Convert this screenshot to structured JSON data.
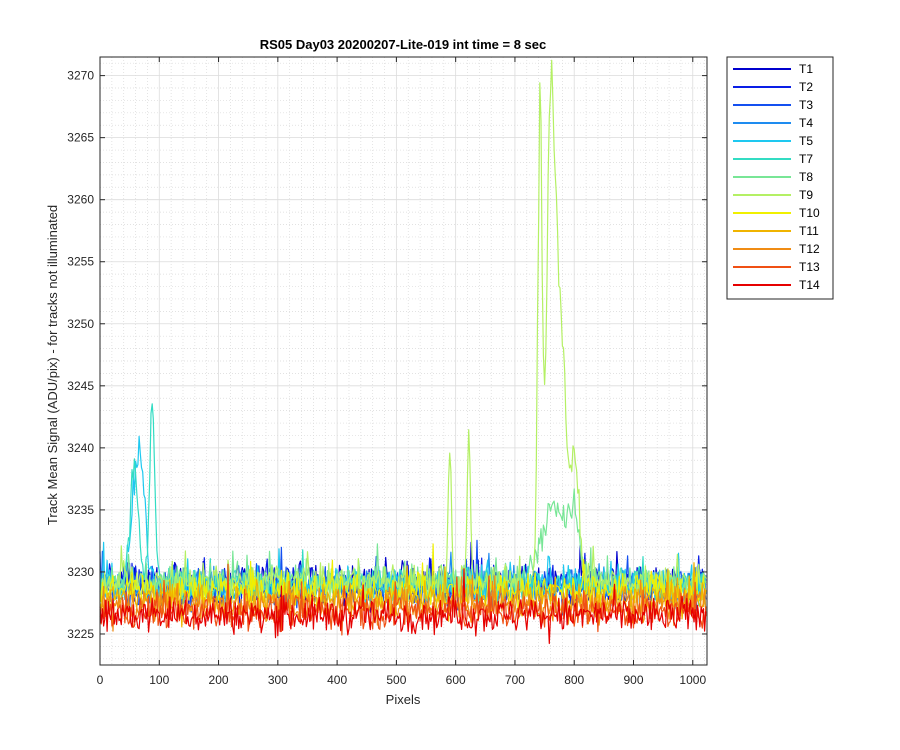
{
  "chart_data": {
    "type": "line",
    "title": "RS05 Day03 20200207-Lite-019 int time = 8 sec",
    "xlabel": "Pixels",
    "ylabel": "Track Mean Signal (ADU/pix) - for tracks not illuminated",
    "xlim": [
      0,
      1024
    ],
    "ylim": [
      3222.5,
      3271.5
    ],
    "xticks": [
      0,
      100,
      200,
      300,
      400,
      500,
      600,
      700,
      800,
      900,
      1000
    ],
    "yticks": [
      3225,
      3230,
      3235,
      3240,
      3245,
      3250,
      3255,
      3260,
      3265,
      3270
    ],
    "grid": true,
    "minor_grid": true,
    "legend_position": "outside-top-right",
    "series": [
      {
        "name": "T1",
        "color": "#0000cd",
        "base": 3229.0,
        "noise": 1.4
      },
      {
        "name": "T2",
        "color": "#0a1ee6",
        "base": 3228.8,
        "noise": 1.4
      },
      {
        "name": "T3",
        "color": "#1450f0",
        "base": 3228.8,
        "noise": 1.3
      },
      {
        "name": "T4",
        "color": "#1e8cf0",
        "base": 3228.9,
        "noise": 1.3
      },
      {
        "name": "T5",
        "color": "#1ec8f0",
        "base": 3229.0,
        "noise": 1.3,
        "peaks": [
          {
            "x": 65,
            "y": 3240.3,
            "w": 14
          }
        ]
      },
      {
        "name": "T7",
        "color": "#32dcc3",
        "base": 3229.0,
        "noise": 1.3,
        "peaks": [
          {
            "x": 58,
            "y": 3239.5,
            "w": 10
          },
          {
            "x": 88,
            "y": 3245.5,
            "w": 6
          }
        ]
      },
      {
        "name": "T8",
        "color": "#78e696",
        "base": 3229.2,
        "noise": 1.3,
        "peaks": [
          {
            "x": 765,
            "y": 3235.5,
            "w": 30
          },
          {
            "x": 800,
            "y": 3234.0,
            "w": 12
          }
        ]
      },
      {
        "name": "T9",
        "color": "#b4f064",
        "base": 3229.2,
        "noise": 1.3,
        "peaks": [
          {
            "x": 590,
            "y": 3240.0,
            "w": 4
          },
          {
            "x": 622,
            "y": 3241.5,
            "w": 4
          },
          {
            "x": 742,
            "y": 3270.0,
            "w": 5
          },
          {
            "x": 762,
            "y": 3271.5,
            "w": 12
          },
          {
            "x": 780,
            "y": 3245.0,
            "w": 10
          },
          {
            "x": 800,
            "y": 3240.0,
            "w": 12
          }
        ]
      },
      {
        "name": "T10",
        "color": "#f0f000",
        "base": 3228.5,
        "noise": 1.3
      },
      {
        "name": "T11",
        "color": "#f0b400",
        "base": 3227.8,
        "noise": 1.3
      },
      {
        "name": "T12",
        "color": "#f08c14",
        "base": 3227.3,
        "noise": 1.3
      },
      {
        "name": "T13",
        "color": "#f05014",
        "base": 3226.8,
        "noise": 1.3
      },
      {
        "name": "T14",
        "color": "#e60000",
        "base": 3226.5,
        "noise": 1.3
      }
    ]
  }
}
